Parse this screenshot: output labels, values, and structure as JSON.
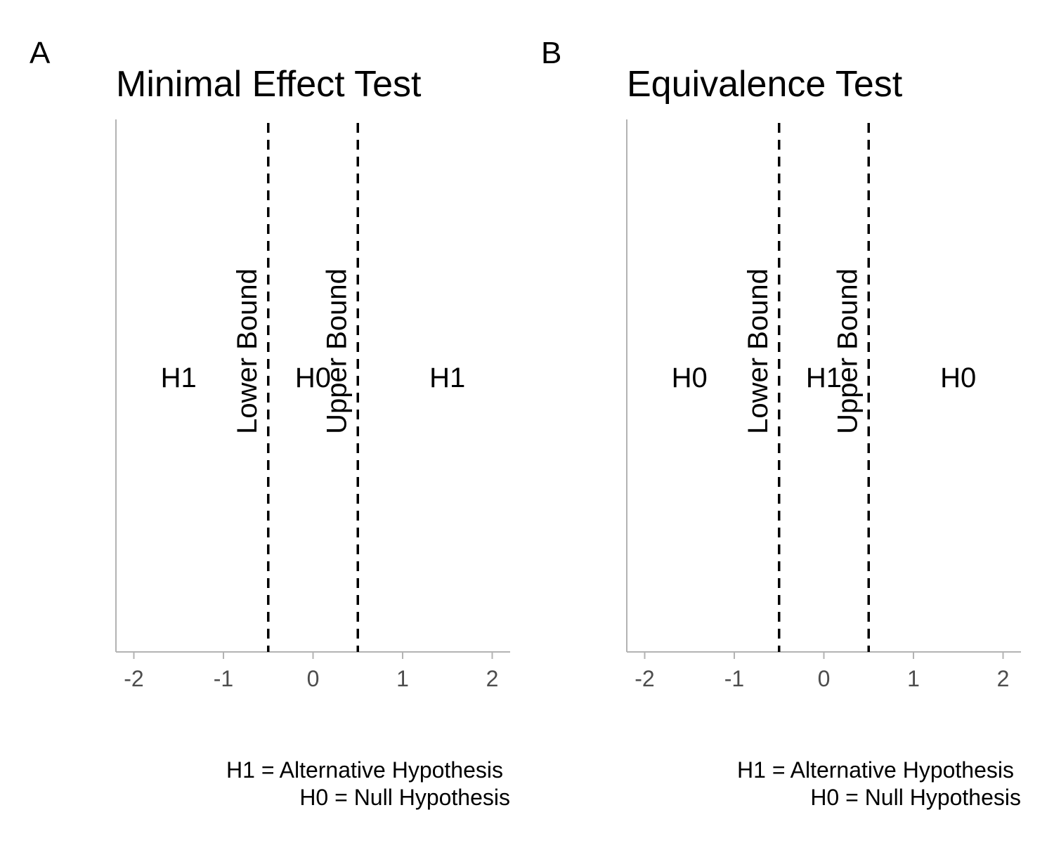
{
  "chart_data": [
    {
      "type": "line",
      "panel_tag": "A",
      "title": "Minimal Effect Test",
      "xlabel": "",
      "ylabel": "",
      "xlim": [
        -2.2,
        2.2
      ],
      "x_ticks": [
        -2,
        -1,
        0,
        1,
        2
      ],
      "x_tick_labels": [
        "-2",
        "-1",
        "0",
        "1",
        "2"
      ],
      "bounds": [
        {
          "name": "Lower Bound",
          "x": -0.5
        },
        {
          "name": "Upper Bound",
          "x": 0.5
        }
      ],
      "regions": [
        {
          "label": "H1",
          "x": -1.5
        },
        {
          "label": "H0",
          "x": 0
        },
        {
          "label": "H1",
          "x": 1.5
        }
      ],
      "caption_lines": [
        "H1 = Alternative Hypothesis",
        "H0 = Null Hypothesis"
      ],
      "grid": false
    },
    {
      "type": "line",
      "panel_tag": "B",
      "title": "Equivalence Test",
      "xlabel": "",
      "ylabel": "",
      "xlim": [
        -2.2,
        2.2
      ],
      "x_ticks": [
        -2,
        -1,
        0,
        1,
        2
      ],
      "x_tick_labels": [
        "-2",
        "-1",
        "0",
        "1",
        "2"
      ],
      "bounds": [
        {
          "name": "Lower Bound",
          "x": -0.5
        },
        {
          "name": "Upper Bound",
          "x": 0.5
        }
      ],
      "regions": [
        {
          "label": "H0",
          "x": -1.5
        },
        {
          "label": "H1",
          "x": 0
        },
        {
          "label": "H0",
          "x": 1.5
        }
      ],
      "caption_lines": [
        "H1 = Alternative Hypothesis",
        "H0 = Null Hypothesis"
      ],
      "grid": false
    }
  ]
}
